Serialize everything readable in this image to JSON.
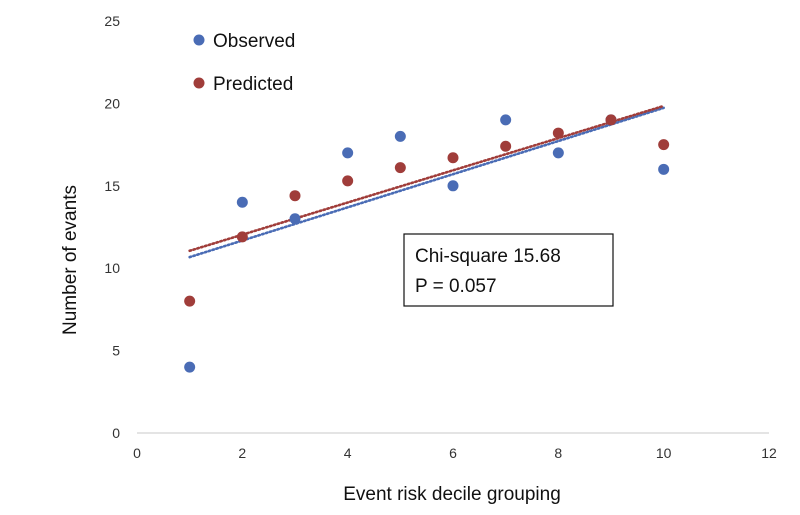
{
  "chart_data": {
    "type": "scatter",
    "xlabel": "Event risk decile grouping",
    "ylabel": "Number of evants",
    "xlim": [
      0,
      12
    ],
    "ylim": [
      0,
      25
    ],
    "xticks": [
      0,
      2,
      4,
      6,
      8,
      10,
      12
    ],
    "yticks": [
      0,
      5,
      10,
      15,
      20,
      25
    ],
    "grid": false,
    "legend_position": "top-left",
    "series": [
      {
        "name": "Observed",
        "color": "#4a6cb5",
        "x": [
          1,
          2,
          3,
          4,
          5,
          6,
          7,
          8,
          9,
          10
        ],
        "y": [
          4,
          14,
          13,
          17,
          18,
          15,
          19,
          17,
          19,
          16
        ],
        "trendline": {
          "type": "linear",
          "style": "dotted"
        }
      },
      {
        "name": "Predicted",
        "color": "#a03d3a",
        "x": [
          1,
          2,
          3,
          4,
          5,
          6,
          7,
          8,
          9,
          10
        ],
        "y": [
          8,
          11.9,
          14.4,
          15.3,
          16.1,
          16.7,
          17.4,
          18.2,
          19,
          17.5
        ],
        "trendline": {
          "type": "linear",
          "style": "dotted"
        }
      }
    ],
    "annotation": {
      "lines": [
        "Chi-square 15.68",
        "P = 0.057"
      ]
    }
  }
}
